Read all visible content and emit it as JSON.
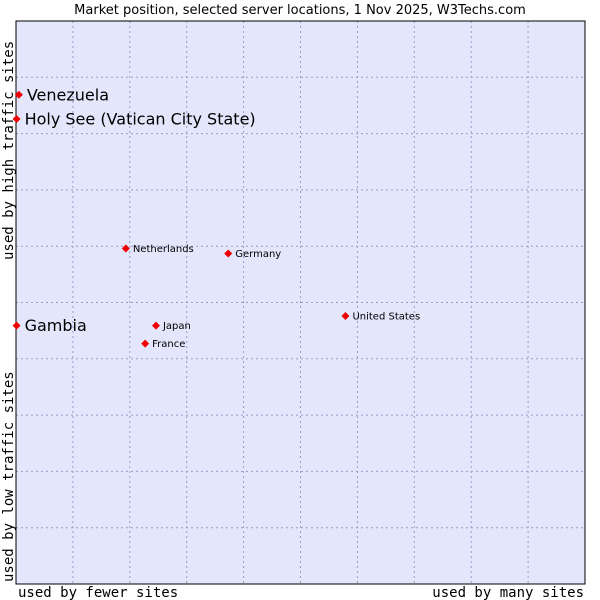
{
  "chart_data": {
    "type": "scatter",
    "title": "Market position, selected server locations, 1 Nov 2025, W3Techs.com",
    "xlabel": "",
    "ylabel": "",
    "axis_labels": {
      "x_low": "used by fewer sites",
      "x_high": "used by many sites",
      "y_low": "used by low traffic sites",
      "y_high": "used by high traffic sites"
    },
    "xlim": [
      0,
      100
    ],
    "ylim": [
      0,
      100
    ],
    "grid": true,
    "colors": {
      "plot_background": "#e4e6fb",
      "grid": "#9b9bc8",
      "border": "#000000",
      "marker": "#ee0000"
    },
    "points": [
      {
        "label": "Venezuela",
        "x": 0.5,
        "y": 86.9,
        "label_size": "large"
      },
      {
        "label": "Holy See (Vatican City State)",
        "x": 0.1,
        "y": 82.6,
        "label_size": "large"
      },
      {
        "label": "Netherlands",
        "x": 19.3,
        "y": 59.6,
        "label_size": "small"
      },
      {
        "label": "Germany",
        "x": 37.3,
        "y": 58.7,
        "label_size": "small"
      },
      {
        "label": "United States",
        "x": 57.9,
        "y": 47.6,
        "label_size": "small"
      },
      {
        "label": "Gambia",
        "x": 0.1,
        "y": 45.9,
        "label_size": "large"
      },
      {
        "label": "Japan",
        "x": 24.6,
        "y": 45.9,
        "label_size": "small"
      },
      {
        "label": "France",
        "x": 22.7,
        "y": 42.7,
        "label_size": "small"
      }
    ]
  }
}
